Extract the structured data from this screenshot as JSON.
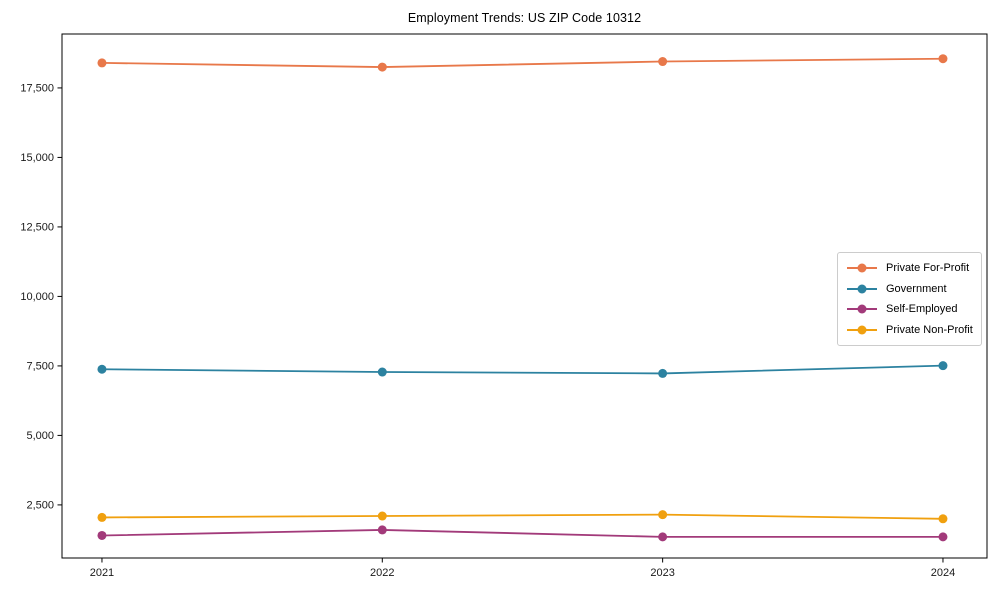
{
  "chart_data": {
    "type": "line",
    "title": "Employment Trends: US ZIP Code 10312",
    "categories": [
      "2021",
      "2022",
      "2023",
      "2024"
    ],
    "series": [
      {
        "name": "Private For-Profit",
        "color": "#e8784a",
        "values": [
          18400,
          18250,
          18450,
          18550
        ]
      },
      {
        "name": "Government",
        "color": "#2c82a0",
        "values": [
          7380,
          7280,
          7230,
          7510
        ]
      },
      {
        "name": "Self-Employed",
        "color": "#a23a7a",
        "values": [
          1400,
          1600,
          1350,
          1350
        ]
      },
      {
        "name": "Private Non-Profit",
        "color": "#f0a00f",
        "values": [
          2050,
          2100,
          2150,
          2000
        ]
      }
    ],
    "yticks": [
      2500,
      5000,
      7500,
      10000,
      12500,
      15000,
      17500
    ],
    "ytick_labels": [
      "2,500",
      "5,000",
      "7,500",
      "10,000",
      "12,500",
      "15,000",
      "17,500"
    ],
    "ylim": [
      590,
      19440
    ],
    "xlabel": "",
    "ylabel": "",
    "grid": false,
    "legend_position": "center right",
    "marker": "circle",
    "background_color": "#ffffff",
    "spine_color": "#000000",
    "text_color": "#1a1a1a"
  }
}
